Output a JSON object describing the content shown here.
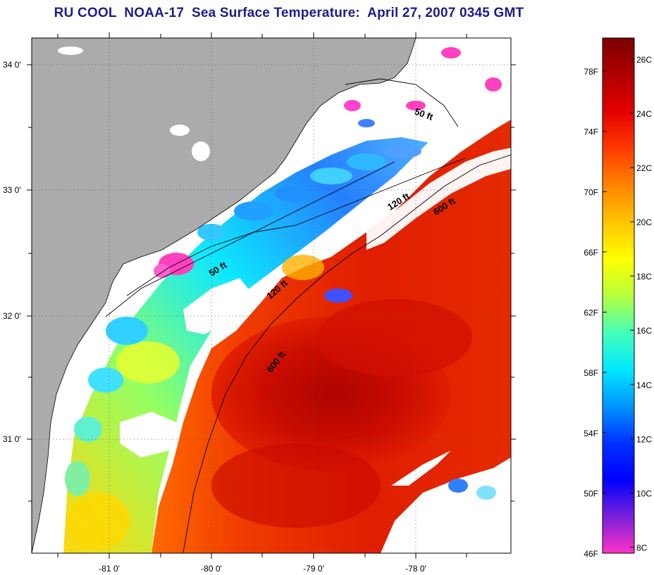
{
  "title": "RU COOL  NOAA-17  Sea Surface Temperature:  April 27, 2007 0345 GMT",
  "map": {
    "lat_labels": [
      "34 0'",
      "33 0'",
      "32 0'",
      "31 0'"
    ],
    "lon_labels": [
      "-81 0'",
      "-80 0'",
      "-79 0'",
      "-78 0'"
    ],
    "isobaths": [
      {
        "id": "50ft-north",
        "label": "50 ft"
      },
      {
        "id": "120ft-north",
        "label": "120 ft"
      },
      {
        "id": "600ft-north",
        "label": "600 ft"
      },
      {
        "id": "50ft-south",
        "label": "50 ft"
      },
      {
        "id": "120ft-south",
        "label": "120 ft"
      },
      {
        "id": "600ft-south",
        "label": "600 ft"
      }
    ],
    "land_color": "#ababab",
    "cloud_color": "#ffffff"
  },
  "colorbar": {
    "fahrenheit_labels": [
      "78F",
      "74F",
      "70F",
      "66F",
      "62F",
      "58F",
      "54F",
      "50F",
      "46F"
    ],
    "celsius_labels": [
      "26C",
      "24C",
      "22C",
      "20C",
      "18C",
      "16C",
      "14C",
      "12C",
      "10C",
      "8C"
    ],
    "colors_top_to_bottom": [
      "#7a0000",
      "#b00000",
      "#e40000",
      "#ff3a00",
      "#ff8400",
      "#ffc400",
      "#ffff00",
      "#b8ff3c",
      "#46ffb8",
      "#00e8ff",
      "#0096ff",
      "#0030ff",
      "#0000ff",
      "#7a1fd8",
      "#ff32c8"
    ]
  }
}
